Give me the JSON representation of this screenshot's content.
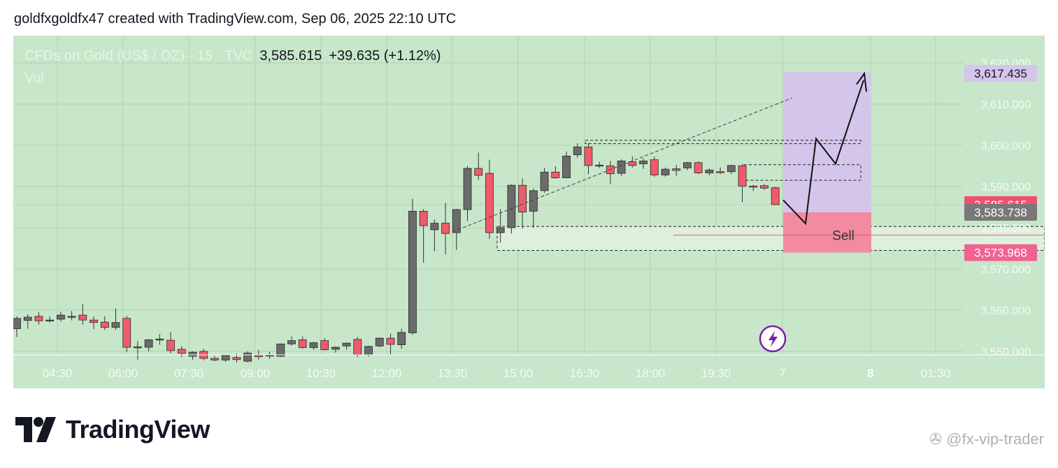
{
  "header": {
    "text": "goldfxgoldfx47 created with TradingView.com, Sep 06, 2025 22:10 UTC"
  },
  "legend": {
    "symbol": "CFDs on Gold (US$ / OZ) · 15 · TVC",
    "price": "3,585.615",
    "change": "+39.635 (+1.12%)",
    "vol_label": "Vol"
  },
  "footer": {
    "brand": "TradingView",
    "watermark": "@fx-vip-trader"
  },
  "colors": {
    "background": "#c8e6c9",
    "up_candle": "#6b6b6b",
    "down_candle": "#ef5b6b",
    "target_zone": "#d4c5ea",
    "stop_zone": "#f28ba0",
    "price_badge": "#f0506e",
    "last_badge": "#787878",
    "entry_badge": "#f06292"
  },
  "chart_data": {
    "type": "candlestick",
    "interval": "15",
    "ylim": [
      3546,
      3624
    ],
    "y_ticks": [
      "3,550.000",
      "3,560.000",
      "3,570.000",
      "3,580.000",
      "3,590.000",
      "3,600.000",
      "3,610.000",
      "3,620.000"
    ],
    "x_ticks": [
      "04:30",
      "06:00",
      "07:30",
      "09:00",
      "10:30",
      "12:00",
      "13:30",
      "15:00",
      "16:30",
      "18:00",
      "19:30",
      "7",
      "8",
      "01:30"
    ],
    "price_labels": [
      {
        "text": "3,617.435",
        "value": 3617.435,
        "kind": "target"
      },
      {
        "text": "3,585.615",
        "value": 3585.615,
        "kind": "current"
      },
      {
        "text": "3,583.738",
        "value": 3583.738,
        "kind": "entry"
      },
      {
        "text": "3,573.968",
        "value": 3573.968,
        "kind": "stop"
      }
    ],
    "annotation": "Sell",
    "candles": [
      {
        "o": 3555.5,
        "h": 3558.5,
        "l": 3553.5,
        "c": 3558.0
      },
      {
        "o": 3557.5,
        "h": 3559.0,
        "l": 3555.5,
        "c": 3558.3
      },
      {
        "o": 3558.5,
        "h": 3559.5,
        "l": 3556.5,
        "c": 3557.4
      },
      {
        "o": 3557.6,
        "h": 3558.5,
        "l": 3557.0,
        "c": 3557.6
      },
      {
        "o": 3557.8,
        "h": 3559.6,
        "l": 3557.2,
        "c": 3558.8
      },
      {
        "o": 3558.5,
        "h": 3559.8,
        "l": 3557.5,
        "c": 3558.5
      },
      {
        "o": 3558.8,
        "h": 3561.5,
        "l": 3556.5,
        "c": 3557.6
      },
      {
        "o": 3557.6,
        "h": 3558.5,
        "l": 3555.4,
        "c": 3557.0
      },
      {
        "o": 3557.1,
        "h": 3558.5,
        "l": 3555.2,
        "c": 3555.8
      },
      {
        "o": 3555.8,
        "h": 3560.4,
        "l": 3555.2,
        "c": 3557.0
      },
      {
        "o": 3558.0,
        "h": 3558.6,
        "l": 3549.8,
        "c": 3551.0
      },
      {
        "o": 3551.0,
        "h": 3552.5,
        "l": 3548.0,
        "c": 3551.1
      },
      {
        "o": 3551.0,
        "h": 3553.0,
        "l": 3550.0,
        "c": 3552.8
      },
      {
        "o": 3553.0,
        "h": 3554.2,
        "l": 3551.6,
        "c": 3553.0
      },
      {
        "o": 3552.7,
        "h": 3554.7,
        "l": 3549.5,
        "c": 3550.2
      },
      {
        "o": 3550.5,
        "h": 3551.2,
        "l": 3548.6,
        "c": 3549.5
      },
      {
        "o": 3548.8,
        "h": 3550.0,
        "l": 3548.0,
        "c": 3549.8
      },
      {
        "o": 3550.0,
        "h": 3550.6,
        "l": 3547.8,
        "c": 3548.3
      },
      {
        "o": 3548.3,
        "h": 3548.9,
        "l": 3547.6,
        "c": 3547.9
      },
      {
        "o": 3547.9,
        "h": 3549.2,
        "l": 3547.4,
        "c": 3549.0
      },
      {
        "o": 3548.5,
        "h": 3549.5,
        "l": 3547.3,
        "c": 3548.0
      },
      {
        "o": 3547.6,
        "h": 3550.0,
        "l": 3547.3,
        "c": 3549.6
      },
      {
        "o": 3549.1,
        "h": 3550.3,
        "l": 3548.0,
        "c": 3548.7
      },
      {
        "o": 3549.0,
        "h": 3549.9,
        "l": 3548.2,
        "c": 3549.1
      },
      {
        "o": 3548.8,
        "h": 3551.9,
        "l": 3548.6,
        "c": 3551.8
      },
      {
        "o": 3551.8,
        "h": 3553.6,
        "l": 3551.4,
        "c": 3552.6
      },
      {
        "o": 3552.8,
        "h": 3553.6,
        "l": 3550.6,
        "c": 3550.9
      },
      {
        "o": 3550.9,
        "h": 3552.3,
        "l": 3550.4,
        "c": 3552.1
      },
      {
        "o": 3552.6,
        "h": 3553.2,
        "l": 3550.2,
        "c": 3550.4
      },
      {
        "o": 3550.5,
        "h": 3551.2,
        "l": 3549.7,
        "c": 3551.0
      },
      {
        "o": 3551.3,
        "h": 3552.1,
        "l": 3550.4,
        "c": 3552.0
      },
      {
        "o": 3552.9,
        "h": 3553.5,
        "l": 3548.6,
        "c": 3549.2
      },
      {
        "o": 3549.2,
        "h": 3551.4,
        "l": 3548.7,
        "c": 3551.2
      },
      {
        "o": 3551.3,
        "h": 3553.4,
        "l": 3551.0,
        "c": 3553.2
      },
      {
        "o": 3553.2,
        "h": 3554.3,
        "l": 3549.2,
        "c": 3551.7
      },
      {
        "o": 3551.6,
        "h": 3555.5,
        "l": 3550.6,
        "c": 3554.6
      },
      {
        "o": 3554.5,
        "h": 3587.0,
        "l": 3554.0,
        "c": 3584.0
      },
      {
        "o": 3584.0,
        "h": 3584.5,
        "l": 3571.5,
        "c": 3580.5
      },
      {
        "o": 3579.5,
        "h": 3582.0,
        "l": 3574.3,
        "c": 3581.1
      },
      {
        "o": 3581.1,
        "h": 3586.0,
        "l": 3573.5,
        "c": 3578.6
      },
      {
        "o": 3578.8,
        "h": 3584.6,
        "l": 3574.6,
        "c": 3584.4
      },
      {
        "o": 3584.4,
        "h": 3595.0,
        "l": 3581.6,
        "c": 3594.4
      },
      {
        "o": 3594.4,
        "h": 3598.2,
        "l": 3591.6,
        "c": 3592.7
      },
      {
        "o": 3593.2,
        "h": 3596.5,
        "l": 3577.3,
        "c": 3578.8
      },
      {
        "o": 3578.8,
        "h": 3584.5,
        "l": 3576.4,
        "c": 3580.0
      },
      {
        "o": 3580.0,
        "h": 3590.5,
        "l": 3578.6,
        "c": 3590.3
      },
      {
        "o": 3590.3,
        "h": 3592.0,
        "l": 3579.8,
        "c": 3583.8
      },
      {
        "o": 3584.0,
        "h": 3589.5,
        "l": 3580.0,
        "c": 3589.0
      },
      {
        "o": 3589.0,
        "h": 3594.5,
        "l": 3588.5,
        "c": 3593.5
      },
      {
        "o": 3593.5,
        "h": 3594.9,
        "l": 3591.9,
        "c": 3592.1
      },
      {
        "o": 3592.1,
        "h": 3598.5,
        "l": 3592.0,
        "c": 3597.4
      },
      {
        "o": 3597.7,
        "h": 3600.5,
        "l": 3597.0,
        "c": 3599.6
      },
      {
        "o": 3599.6,
        "h": 3600.5,
        "l": 3593.0,
        "c": 3595.1
      },
      {
        "o": 3595.0,
        "h": 3596.0,
        "l": 3594.5,
        "c": 3595.2
      },
      {
        "o": 3595.0,
        "h": 3596.2,
        "l": 3590.6,
        "c": 3593.1
      },
      {
        "o": 3593.2,
        "h": 3596.6,
        "l": 3592.6,
        "c": 3596.2
      },
      {
        "o": 3596.0,
        "h": 3597.3,
        "l": 3594.6,
        "c": 3595.1
      },
      {
        "o": 3595.5,
        "h": 3596.8,
        "l": 3594.3,
        "c": 3596.2
      },
      {
        "o": 3596.5,
        "h": 3597.3,
        "l": 3592.3,
        "c": 3592.8
      },
      {
        "o": 3592.8,
        "h": 3594.6,
        "l": 3592.4,
        "c": 3594.2
      },
      {
        "o": 3594.3,
        "h": 3595.2,
        "l": 3592.6,
        "c": 3593.9
      },
      {
        "o": 3594.5,
        "h": 3596.0,
        "l": 3594.0,
        "c": 3595.8
      },
      {
        "o": 3595.8,
        "h": 3596.1,
        "l": 3593.0,
        "c": 3593.3
      },
      {
        "o": 3593.3,
        "h": 3594.4,
        "l": 3592.7,
        "c": 3594.0
      },
      {
        "o": 3593.6,
        "h": 3594.6,
        "l": 3593.0,
        "c": 3593.5
      },
      {
        "o": 3593.6,
        "h": 3595.3,
        "l": 3593.0,
        "c": 3595.1
      },
      {
        "o": 3595.0,
        "h": 3595.5,
        "l": 3586.2,
        "c": 3590.1
      },
      {
        "o": 3590.1,
        "h": 3590.4,
        "l": 3588.9,
        "c": 3589.9
      },
      {
        "o": 3590.2,
        "h": 3590.6,
        "l": 3589.2,
        "c": 3589.6
      },
      {
        "o": 3589.7,
        "h": 3589.9,
        "l": 3585.5,
        "c": 3585.6
      }
    ]
  }
}
